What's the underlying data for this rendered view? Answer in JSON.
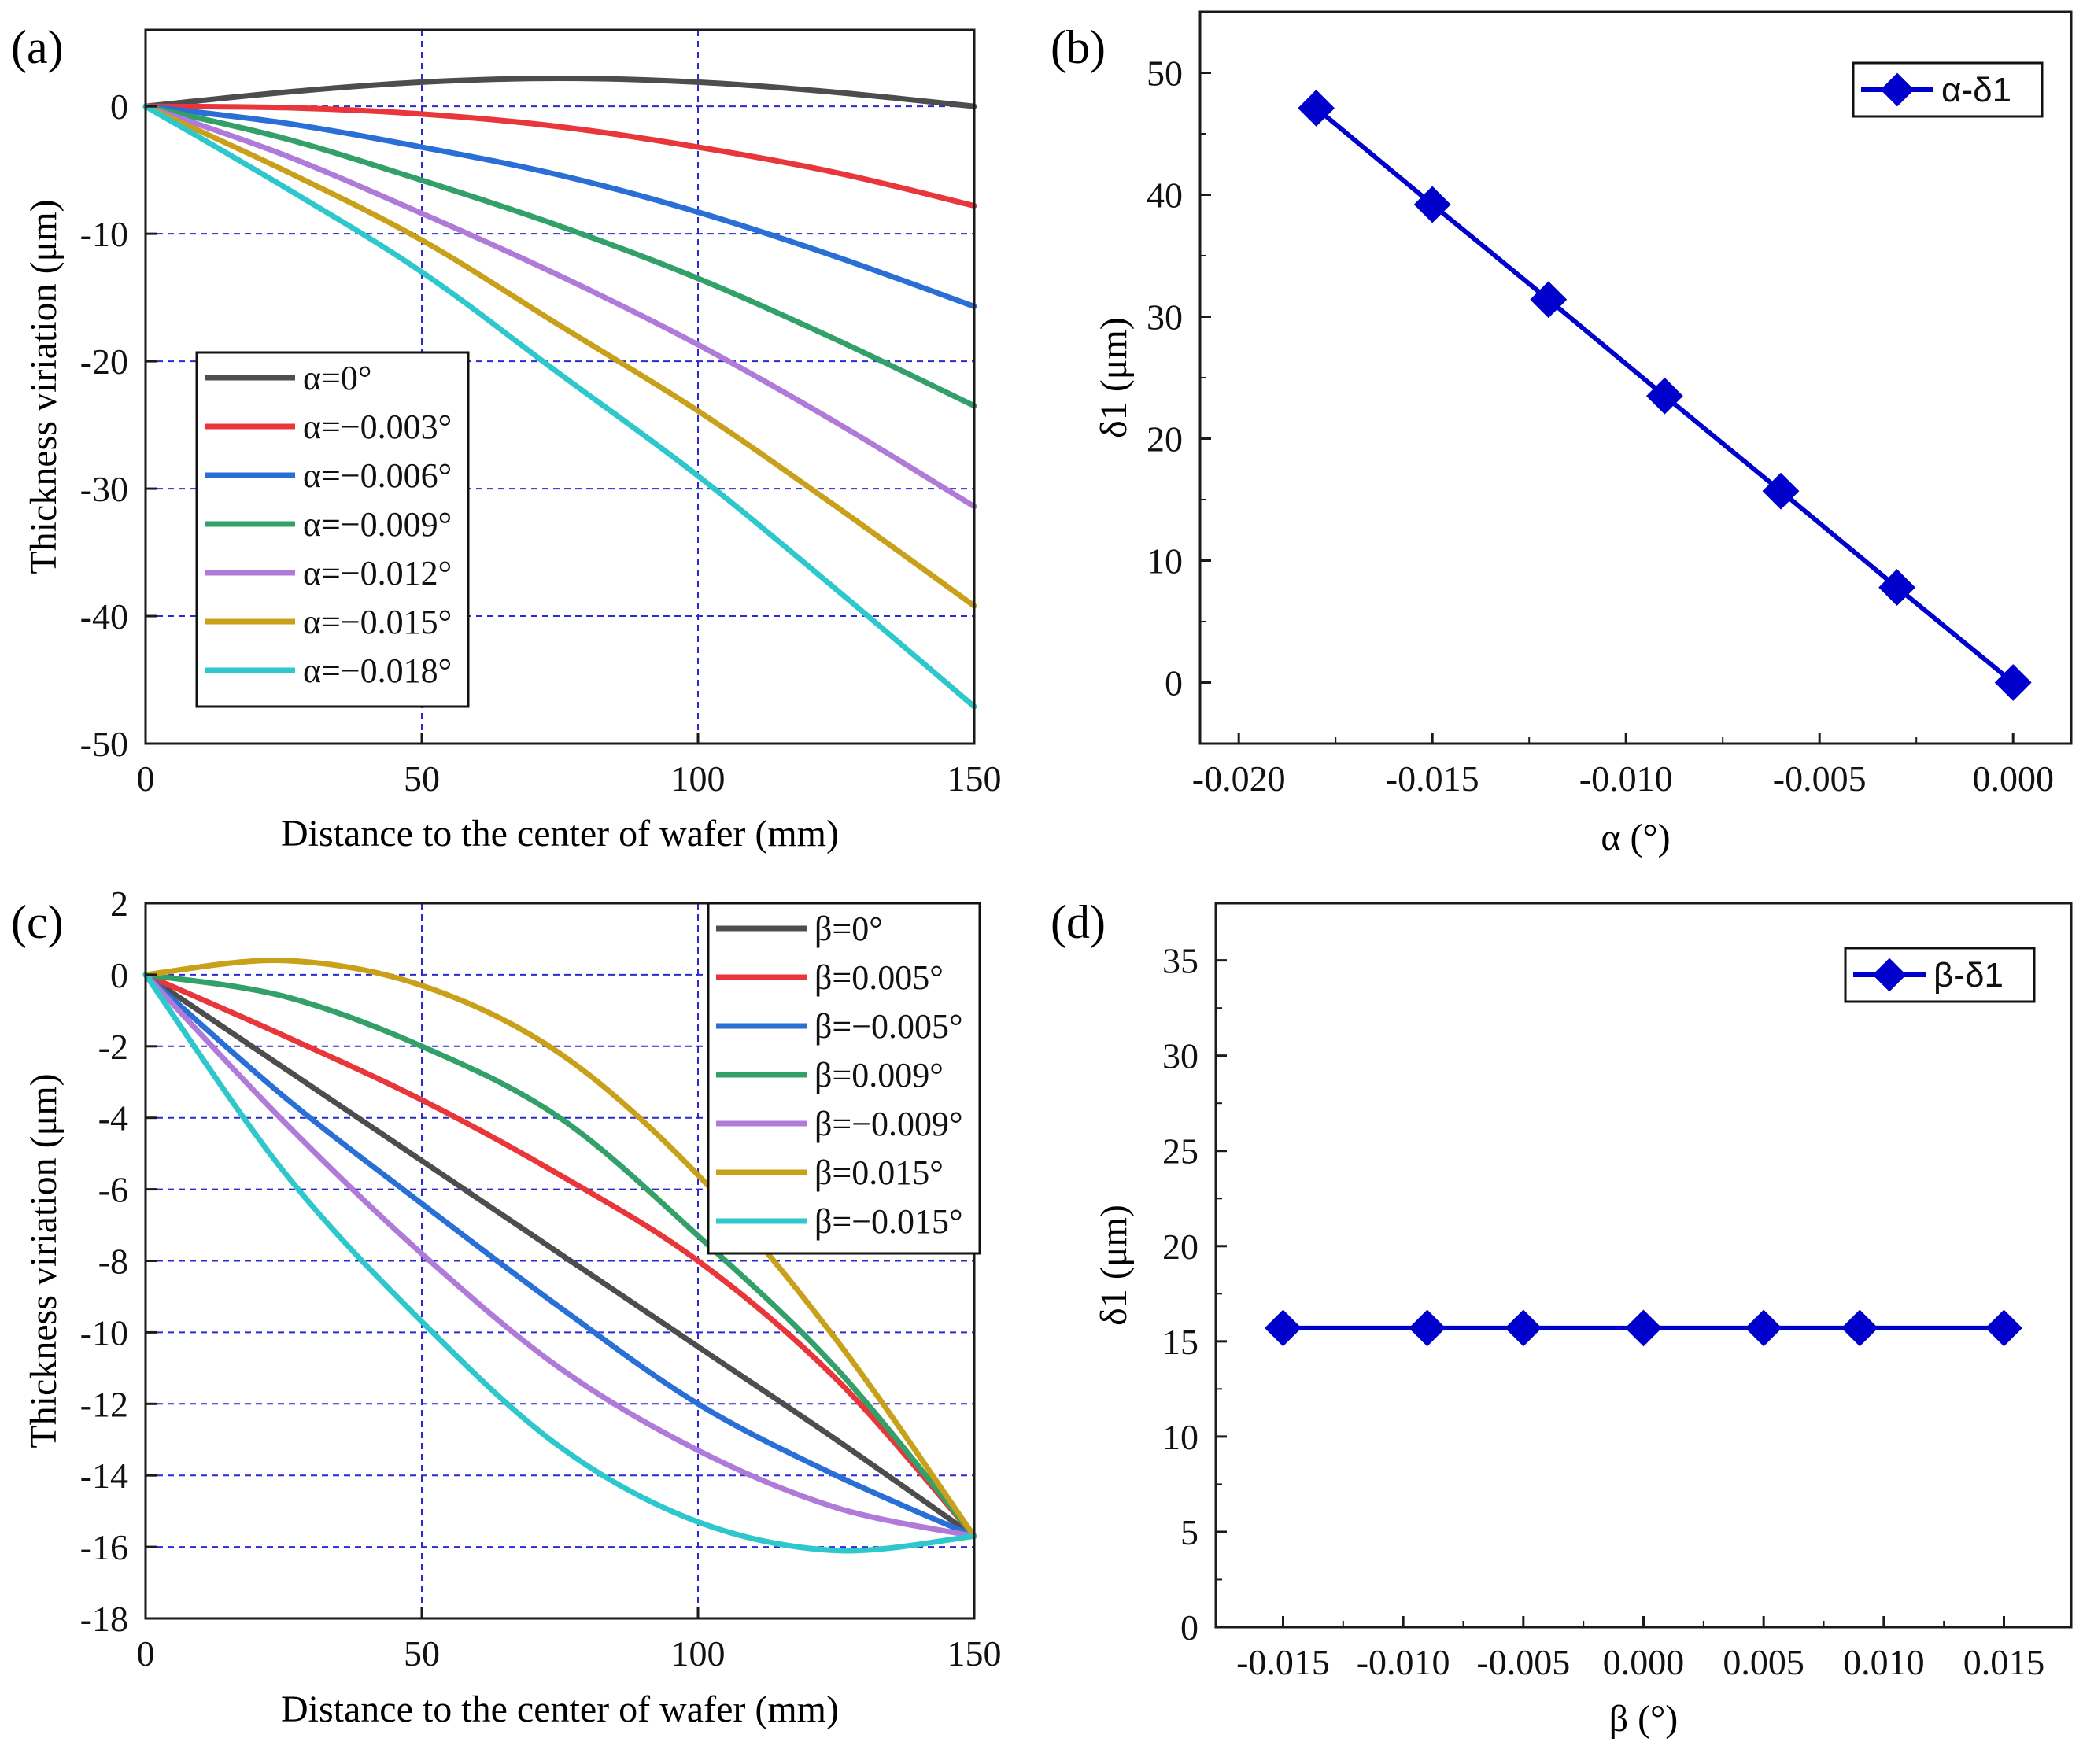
{
  "colors": {
    "axis": "#1a1a1a",
    "grid": "#2a2ad0",
    "marker_series": "#0000cc",
    "alpha_series": [
      "#4d4d4d",
      "#e8363a",
      "#2a6fd6",
      "#33a06a",
      "#b07ad8",
      "#c9a01a",
      "#2ec8cc"
    ],
    "beta_series": [
      "#4d4d4d",
      "#e8363a",
      "#2a6fd6",
      "#33a06a",
      "#b07ad8",
      "#c9a01a",
      "#2ec8cc"
    ]
  },
  "chart_data": [
    {
      "id": "a",
      "panel_label": "(a)",
      "type": "line",
      "xlabel": "Distance to the center of wafer (mm)",
      "ylabel": "Thickness viriation (μm)",
      "xlim": [
        0,
        150
      ],
      "ylim": [
        -50,
        6
      ],
      "xticks": [
        0,
        50,
        100,
        150
      ],
      "yticks": [
        0,
        -10,
        -20,
        -30,
        -40,
        -50
      ],
      "grid": true,
      "legend_position": "bottom-left",
      "series": [
        {
          "name": "α=0°",
          "x": [
            0,
            25,
            50,
            75,
            100,
            125,
            150
          ],
          "y": [
            0,
            1.1,
            1.9,
            2.2,
            1.9,
            1.1,
            0
          ]
        },
        {
          "name": "α=−0.003°",
          "x": [
            0,
            25,
            50,
            75,
            100,
            125,
            150
          ],
          "y": [
            0,
            -0.1,
            -0.6,
            -1.6,
            -3.2,
            -5.2,
            -7.8
          ]
        },
        {
          "name": "α=−0.006°",
          "x": [
            0,
            25,
            50,
            75,
            100,
            125,
            150
          ],
          "y": [
            0,
            -1.3,
            -3.2,
            -5.4,
            -8.3,
            -11.8,
            -15.7
          ]
        },
        {
          "name": "α=−0.009°",
          "x": [
            0,
            25,
            50,
            75,
            100,
            125,
            150
          ],
          "y": [
            0,
            -2.5,
            -5.8,
            -9.4,
            -13.5,
            -18.3,
            -23.5
          ]
        },
        {
          "name": "α=−0.012°",
          "x": [
            0,
            25,
            50,
            75,
            100,
            125,
            150
          ],
          "y": [
            0,
            -3.8,
            -8.4,
            -13.3,
            -18.7,
            -24.8,
            -31.4
          ]
        },
        {
          "name": "α=−0.015°",
          "x": [
            0,
            25,
            50,
            75,
            100,
            125,
            150
          ],
          "y": [
            0,
            -5.0,
            -10.5,
            -17.2,
            -23.9,
            -31.4,
            -39.2
          ]
        },
        {
          "name": "α=−0.018°",
          "x": [
            0,
            25,
            50,
            75,
            100,
            125,
            150
          ],
          "y": [
            0,
            -6.3,
            -13.0,
            -21.0,
            -29.0,
            -37.9,
            -47.1
          ]
        }
      ]
    },
    {
      "id": "b",
      "panel_label": "(b)",
      "type": "scatter",
      "xlabel": "α (°)",
      "ylabel": "δ1 (μm)",
      "xlim": [
        -0.021,
        0.0015
      ],
      "ylim": [
        -5,
        55
      ],
      "xticks": [
        "-0.020",
        "-0.015",
        "-0.010",
        "-0.005",
        "0.000"
      ],
      "xtick_values": [
        -0.02,
        -0.015,
        -0.01,
        -0.005,
        0.0
      ],
      "yticks": [
        0,
        10,
        20,
        30,
        40,
        50
      ],
      "grid": false,
      "legend_position": "top-right",
      "series": [
        {
          "name": "α-δ1",
          "x": [
            -0.018,
            -0.015,
            -0.012,
            -0.009,
            -0.006,
            -0.003,
            0.0
          ],
          "y": [
            47.1,
            39.2,
            31.4,
            23.5,
            15.7,
            7.8,
            0
          ]
        }
      ]
    },
    {
      "id": "c",
      "panel_label": "(c)",
      "type": "line",
      "xlabel": "Distance to the center of wafer (mm)",
      "ylabel": "Thickness viriation (μm)",
      "xlim": [
        0,
        150
      ],
      "ylim": [
        -18,
        2
      ],
      "xticks": [
        0,
        50,
        100,
        150
      ],
      "yticks": [
        2,
        0,
        -2,
        -4,
        -6,
        -8,
        -10,
        -12,
        -14,
        -16,
        -18
      ],
      "grid": true,
      "legend_position": "top-right",
      "series": [
        {
          "name": "β=0°",
          "x": [
            0,
            25,
            50,
            75,
            100,
            125,
            150
          ],
          "y": [
            0,
            -2.6,
            -5.2,
            -7.8,
            -10.4,
            -13.0,
            -15.7
          ]
        },
        {
          "name": "β=0.005°",
          "x": [
            0,
            25,
            50,
            75,
            100,
            125,
            150
          ],
          "y": [
            0,
            -1.7,
            -3.5,
            -5.6,
            -8.0,
            -11.3,
            -15.7
          ]
        },
        {
          "name": "β=−0.005°",
          "x": [
            0,
            25,
            50,
            75,
            100,
            125,
            150
          ],
          "y": [
            0,
            -3.4,
            -6.4,
            -9.3,
            -12.0,
            -14.0,
            -15.7
          ]
        },
        {
          "name": "β=0.009°",
          "x": [
            0,
            25,
            50,
            75,
            100,
            125,
            150
          ],
          "y": [
            0,
            -0.6,
            -2.0,
            -4.0,
            -7.3,
            -11.0,
            -15.7
          ]
        },
        {
          "name": "β=−0.009°",
          "x": [
            0,
            25,
            50,
            75,
            100,
            125,
            150
          ],
          "y": [
            0,
            -4.1,
            -7.8,
            -11.0,
            -13.3,
            -14.9,
            -15.7
          ]
        },
        {
          "name": "β=0.015°",
          "x": [
            0,
            25,
            50,
            75,
            100,
            125,
            150
          ],
          "y": [
            0,
            0.4,
            -0.3,
            -2.2,
            -5.6,
            -10.2,
            -15.7
          ]
        },
        {
          "name": "β=−0.015°",
          "x": [
            0,
            25,
            50,
            75,
            100,
            125,
            150
          ],
          "y": [
            0,
            -5.5,
            -9.7,
            -13.2,
            -15.3,
            -16.1,
            -15.7
          ]
        }
      ]
    },
    {
      "id": "d",
      "panel_label": "(d)",
      "type": "scatter",
      "xlabel": "β (°)",
      "ylabel": "δ1 (μm)",
      "xlim": [
        -0.0178,
        0.0178
      ],
      "ylim": [
        0,
        38
      ],
      "xticks": [
        "-0.015",
        "-0.010",
        "-0.005",
        "0.000",
        "0.005",
        "0.010",
        "0.015"
      ],
      "xtick_values": [
        -0.015,
        -0.01,
        -0.005,
        0.0,
        0.005,
        0.01,
        0.015
      ],
      "yticks": [
        0,
        5,
        10,
        15,
        20,
        25,
        30,
        35
      ],
      "grid": false,
      "legend_position": "top-right",
      "series": [
        {
          "name": "β-δ1",
          "x": [
            -0.015,
            -0.009,
            -0.005,
            0.0,
            0.005,
            0.009,
            0.015
          ],
          "y": [
            15.7,
            15.7,
            15.7,
            15.7,
            15.7,
            15.7,
            15.7
          ]
        }
      ]
    }
  ]
}
